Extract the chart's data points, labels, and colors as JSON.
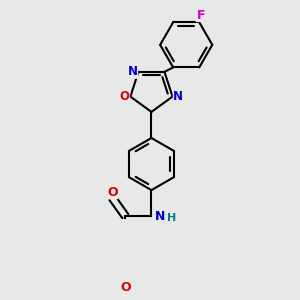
{
  "bg_color": "#e8e8e8",
  "bond_color": "#000000",
  "bond_width": 1.5,
  "dbo": 0.018,
  "figsize": [
    3.0,
    3.0
  ],
  "dpi": 100,
  "atom_colors": {
    "N": "#0000cc",
    "O": "#dd0000",
    "F": "#cc00cc",
    "NH": "#008080"
  },
  "fs": 8.5
}
